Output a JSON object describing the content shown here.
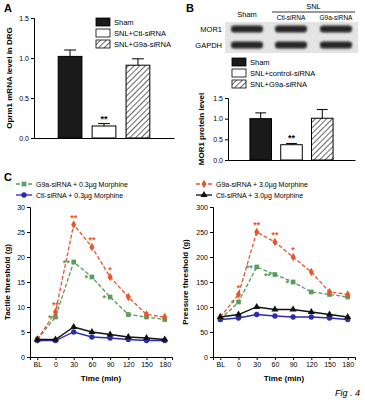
{
  "chart_data": [
    {
      "type": "bar",
      "panel": "A",
      "categories": [
        null
      ],
      "ylabel": "Oprm1 mRNA level in DRG",
      "ylim": [
        0,
        1.5
      ],
      "yticks": [
        {
          "value": 0,
          "label": "0.0"
        },
        {
          "value": 0.5,
          "label": "0.5"
        },
        {
          "value": 1,
          "label": "1.0"
        },
        {
          "value": 1.5,
          "label": "1.5"
        }
      ],
      "tick_labels": "y",
      "legend": "top-right",
      "series": [
        {
          "name": "Sham",
          "color": "#1a1a1a",
          "values": [
            1.02
          ],
          "errors": [
            0.08
          ]
        },
        {
          "name": "SNL+Ctl-siRNA",
          "color": "#ffffff",
          "values": [
            0.15
          ],
          "errors": [
            0.03
          ],
          "annotations": [
            "**"
          ]
        },
        {
          "name": "SNL+G9a-siRNA",
          "color": "#ffffff",
          "line_style": "hatched",
          "values": [
            0.91
          ],
          "errors": [
            0.08
          ]
        }
      ]
    },
    {
      "type": "bar",
      "panel": "B",
      "categories": [
        null
      ],
      "ylabel": "MOR1 protein level",
      "ylim": [
        0,
        1.5
      ],
      "yticks": [
        {
          "value": 0,
          "label": "0.0"
        },
        {
          "value": 0.5,
          "label": "0.5"
        },
        {
          "value": 1,
          "label": "1.0"
        },
        {
          "value": 1.5,
          "label": "1.5"
        }
      ],
      "tick_labels": "y",
      "legend": "top",
      "series": [
        {
          "name": "Sham",
          "color": "#1a1a1a",
          "values": [
            1.0
          ],
          "errors": [
            0.14
          ]
        },
        {
          "name": "SNL+control-siRNA",
          "color": "#ffffff",
          "values": [
            0.37
          ],
          "errors": [
            0.03
          ],
          "annotations": [
            "**"
          ]
        },
        {
          "name": "SNL+G9a-siRNA",
          "color": "#ffffff",
          "line_style": "hatched",
          "values": [
            1.01
          ],
          "errors": [
            0.21
          ]
        }
      ]
    },
    {
      "type": "line",
      "panel": "C",
      "categories": [
        "BL",
        "0",
        "30",
        "60",
        "90",
        "120",
        "150",
        "180"
      ],
      "xlabel": "Time (min)",
      "ylabel": "Tactile threshold (g)",
      "ylim": [
        0,
        30
      ],
      "yticks": [
        0,
        5,
        10,
        15,
        20,
        25,
        30
      ],
      "legend": "top",
      "series": [
        {
          "name": "G9a-siRNA + 0.3µg Morphine",
          "color": "#5b9a5b",
          "marker": "square",
          "line_style": "dashed",
          "values": [
            3.5,
            8,
            19,
            16,
            12,
            8.5,
            8,
            7.5
          ],
          "annotations": [
            null,
            "*",
            "**",
            "*",
            "*",
            null,
            null,
            null
          ]
        },
        {
          "name": "G9a-siRNA + 3.0µg Morphine",
          "color": "#e4572e",
          "marker": "diamond",
          "line_style": "dashed",
          "values": [
            3.5,
            9,
            26.5,
            22,
            16,
            12,
            8.5,
            8
          ],
          "annotations": [
            null,
            "**",
            "**",
            "**",
            "*",
            null,
            null,
            null
          ]
        },
        {
          "name": "Ctl-siRNA + 0.3µg Morphine",
          "color": "#2b2bb0",
          "marker": "circle",
          "line_style": "solid",
          "values": [
            3.3,
            3.3,
            5,
            4,
            3.8,
            3.5,
            3.3,
            3.3
          ]
        },
        {
          "name": "Ctl-siRNA + 3.0µg Morphine",
          "color": "#111111",
          "marker": "triangle",
          "line_style": "solid",
          "values": [
            3.5,
            3.5,
            6,
            5,
            4.5,
            4,
            3.8,
            3.5
          ]
        }
      ]
    },
    {
      "type": "line",
      "categories": [
        "BL",
        "0",
        "30",
        "60",
        "90",
        "120",
        "150",
        "180"
      ],
      "xlabel": "Time (min)",
      "ylabel": "Pressure threshold (g)",
      "ylim": [
        0,
        300
      ],
      "yticks": [
        0,
        50,
        100,
        150,
        200,
        250,
        300
      ],
      "series": [
        {
          "color": "#5b9a5b",
          "marker": "square",
          "line_style": "dashed",
          "values": [
            75,
            110,
            180,
            165,
            150,
            130,
            125,
            120
          ],
          "annotations": [
            null,
            "*",
            "**",
            "**",
            "*",
            null,
            null,
            null
          ]
        },
        {
          "color": "#e4572e",
          "marker": "diamond",
          "line_style": "dashed",
          "values": [
            80,
            125,
            250,
            230,
            200,
            170,
            130,
            125
          ],
          "annotations": [
            null,
            "*",
            "**",
            "**",
            "*",
            null,
            null,
            null
          ]
        },
        {
          "color": "#2b2bb0",
          "marker": "circle",
          "line_style": "solid",
          "values": [
            75,
            78,
            85,
            82,
            80,
            80,
            78,
            75
          ]
        },
        {
          "color": "#111111",
          "marker": "triangle",
          "line_style": "solid",
          "values": [
            80,
            85,
            100,
            95,
            95,
            90,
            85,
            80
          ]
        }
      ]
    }
  ],
  "blot": {
    "group": "SNL",
    "lanes": [
      "Sham",
      "Ctl-siRNA",
      "G9a-siRNA"
    ],
    "rows": [
      "MOR1",
      "GAPDH"
    ]
  },
  "figure_label": "Fig . 4"
}
